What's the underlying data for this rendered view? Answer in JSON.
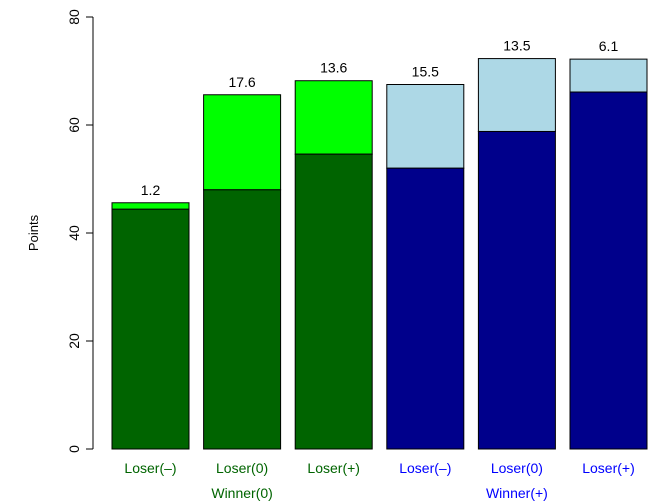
{
  "chart_data": {
    "type": "bar",
    "stacked": true,
    "ylabel": "Points",
    "ylim": [
      0,
      80
    ],
    "yticks": [
      0,
      20,
      40,
      60,
      80
    ],
    "grid": false,
    "categories": [
      "Loser(–)",
      "Loser(0)",
      "Loser(+)",
      "Loser(–)",
      "Loser(0)",
      "Loser(+)"
    ],
    "category_colors": [
      "#006400",
      "#006400",
      "#006400",
      "#0000ff",
      "#0000ff",
      "#0000ff"
    ],
    "groups": [
      {
        "label": "Winner(0)",
        "color": "#006400",
        "category_indices": [
          0,
          1,
          2
        ]
      },
      {
        "label": "Winner(+)",
        "color": "#0000ff",
        "category_indices": [
          3,
          4,
          5
        ]
      }
    ],
    "base_values": [
      44.4,
      48.0,
      54.6,
      52.0,
      58.8,
      66.1
    ],
    "top_values": [
      45.6,
      65.6,
      68.2,
      67.5,
      72.3,
      72.2
    ],
    "difference_labels": [
      "1.2",
      "17.6",
      "13.6",
      "15.5",
      "13.5",
      "6.1"
    ],
    "base_colors": [
      "#006400",
      "#006400",
      "#006400",
      "#00008b",
      "#00008b",
      "#00008b"
    ],
    "top_colors": [
      "#00ff00",
      "#00ff00",
      "#00ff00",
      "#add8e6",
      "#add8e6",
      "#add8e6"
    ]
  }
}
